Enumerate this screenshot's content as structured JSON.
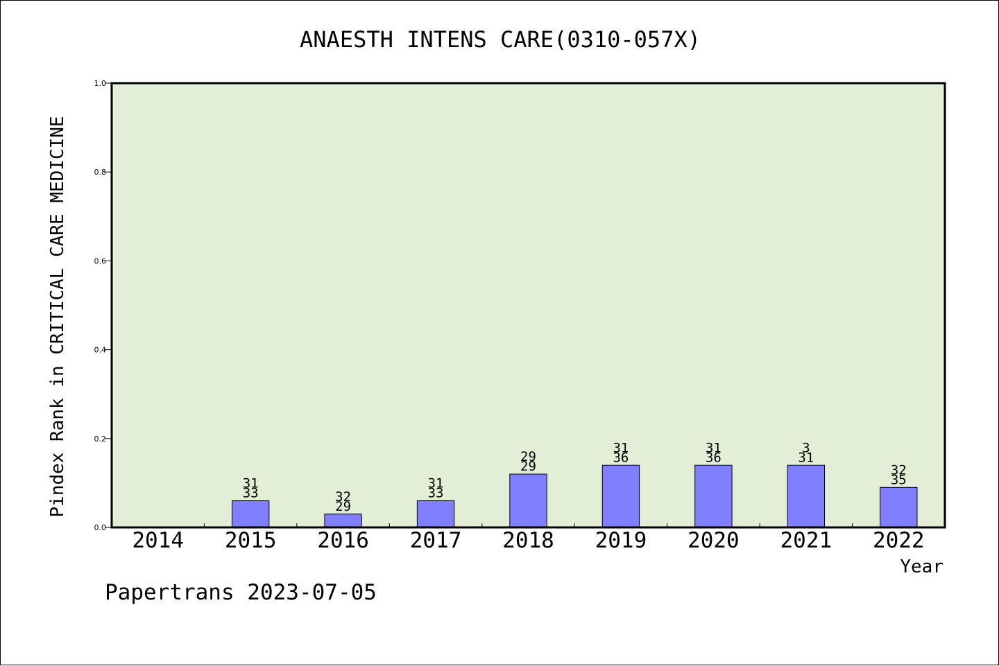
{
  "chart_data": {
    "type": "bar",
    "title": "ANAESTH INTENS CARE(0310-057X)",
    "xlabel": "Year",
    "ylabel": "Pindex Rank in CRITICAL CARE MEDICINE",
    "ylim": [
      0,
      1.0
    ],
    "yticks": [
      0.0,
      0.2,
      0.4,
      0.6,
      0.8,
      1.0
    ],
    "ytick_labels": [
      "0.0",
      "0.2",
      "0.4",
      "0.6",
      "0.8",
      "1.0"
    ],
    "grid": false,
    "categories": [
      "2014",
      "2015",
      "2016",
      "2017",
      "2018",
      "2019",
      "2020",
      "2021",
      "2022"
    ],
    "values": [
      null,
      0.06,
      0.03,
      0.06,
      0.12,
      0.14,
      0.14,
      0.14,
      0.09
    ],
    "label_top": [
      "",
      "31",
      "32",
      "31",
      "29",
      "31",
      "31",
      "3",
      "32"
    ],
    "label_bottom": [
      "",
      "33",
      "29",
      "33",
      "29",
      "36",
      "36",
      "31",
      "35"
    ],
    "colors": {
      "plot_background": "#e2efd6",
      "bar_fill": "#8080ff",
      "bar_stroke": "#000000"
    }
  },
  "footer": {
    "credit": "Papertrans 2023-07-05"
  }
}
